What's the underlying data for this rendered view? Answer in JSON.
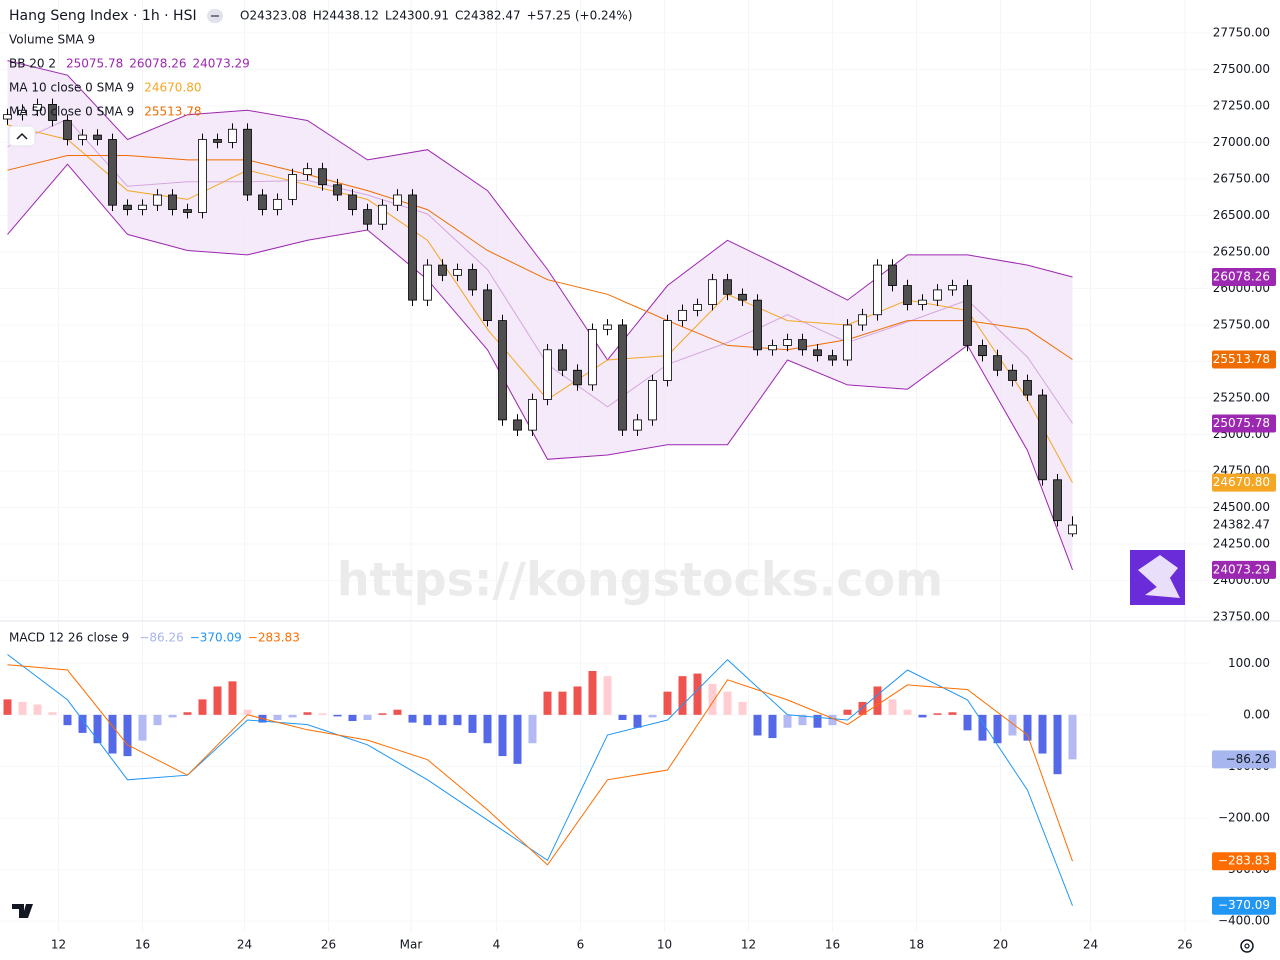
{
  "header": {
    "title": "Hang Seng Index · 1h · HSI",
    "ohlc": [
      {
        "label": "O",
        "value": "24323.08"
      },
      {
        "label": "H",
        "value": "24438.12"
      },
      {
        "label": "L",
        "value": "24300.91"
      },
      {
        "label": "C",
        "value": "24382.47"
      }
    ],
    "change": "+57.25 (+0.24%)"
  },
  "watermark": "https://kongstocks.com",
  "chart_data": [
    {
      "type": "candlestick",
      "xlim": [
        0,
        81
      ],
      "xticks": [
        {
          "value": 3.9,
          "label": "12"
        },
        {
          "value": 9.5,
          "label": "16"
        },
        {
          "value": 16.3,
          "label": "24"
        },
        {
          "value": 21.9,
          "label": "26"
        },
        {
          "value": 27.4,
          "label": "Mar"
        },
        {
          "value": 33.1,
          "label": "4"
        },
        {
          "value": 38.7,
          "label": "6"
        },
        {
          "value": 44.3,
          "label": "10"
        },
        {
          "value": 49.9,
          "label": "12"
        },
        {
          "value": 55.5,
          "label": "16"
        },
        {
          "value": 61.1,
          "label": "18"
        },
        {
          "value": 66.7,
          "label": "20"
        },
        {
          "value": 72.7,
          "label": "24"
        },
        {
          "value": 79,
          "label": "26"
        }
      ],
      "ylim": [
        23730,
        27975
      ],
      "yticks": [
        {
          "value": 27750,
          "label": "27750.00"
        },
        {
          "value": 27500,
          "label": "27500.00"
        },
        {
          "value": 27250,
          "label": "27250.00"
        },
        {
          "value": 27000,
          "label": "27000.00"
        },
        {
          "value": 26750,
          "label": "26750.00"
        },
        {
          "value": 26500,
          "label": "26500.00"
        },
        {
          "value": 26250,
          "label": "26250.00"
        },
        {
          "value": 26000,
          "label": "26000.00"
        },
        {
          "value": 25750,
          "label": "25750.00"
        },
        {
          "value": 25500,
          "label": "25500.00"
        },
        {
          "value": 25250,
          "label": "25250.00"
        },
        {
          "value": 25000,
          "label": "25000.00"
        },
        {
          "value": 24750,
          "label": "24750.00"
        },
        {
          "value": 24500,
          "label": "24500.00"
        },
        {
          "value": 24250,
          "label": "24250.00"
        },
        {
          "value": 24000,
          "label": "24000.00"
        },
        {
          "value": 23750,
          "label": "23750.00"
        }
      ],
      "x": [
        0.5,
        1.5,
        2.5,
        3.5,
        4.5,
        5.5,
        6.5,
        7.5,
        8.5,
        9.5,
        10.5,
        11.5,
        12.5,
        13.5,
        14.5,
        15.5,
        16.5,
        17.5,
        18.5,
        19.5,
        20.5,
        21.5,
        22.5,
        23.5,
        24.5,
        25.5,
        26.5,
        27.5,
        28.5,
        29.5,
        30.5,
        31.5,
        32.5,
        33.5,
        34.5,
        35.5,
        36.5,
        37.5,
        38.5,
        39.5,
        40.5,
        41.5,
        42.5,
        43.5,
        44.5,
        45.5,
        46.5,
        47.5,
        48.5,
        49.5,
        50.5,
        51.5,
        52.5,
        53.5,
        54.5,
        55.5,
        56.5,
        57.5,
        58.5,
        59.5,
        60.5,
        61.5,
        62.5,
        63.5,
        64.5,
        65.5,
        66.5,
        67.5,
        68.5,
        69.5,
        70.5,
        71.5
      ],
      "open": [
        27160,
        27190,
        27220,
        27260,
        27150,
        27020,
        27050,
        27020,
        26570,
        26540,
        26570,
        26640,
        26540,
        26520,
        27020,
        27000,
        27090,
        26640,
        26540,
        26610,
        26780,
        26820,
        26710,
        26640,
        26540,
        26440,
        26570,
        26640,
        25920,
        26160,
        26090,
        26130,
        25990,
        25780,
        25100,
        25030,
        25240,
        25580,
        25440,
        25340,
        25720,
        25750,
        25030,
        25100,
        25370,
        25780,
        25850,
        25890,
        26060,
        25960,
        25920,
        25580,
        25610,
        25650,
        25580,
        25540,
        25510,
        25750,
        25820,
        26160,
        26020,
        25890,
        25920,
        25990,
        26020,
        25610,
        25540,
        25440,
        25370,
        25270,
        24690,
        24320
      ],
      "high": [
        27230,
        27260,
        27300,
        27300,
        27190,
        27090,
        27090,
        27060,
        26610,
        26610,
        26680,
        26680,
        26580,
        27060,
        27060,
        27130,
        27130,
        26680,
        26650,
        26820,
        26860,
        26860,
        26750,
        26680,
        26580,
        26610,
        26680,
        26680,
        26200,
        26200,
        26170,
        26170,
        26030,
        25820,
        25140,
        25280,
        25620,
        25620,
        25480,
        25760,
        25790,
        25790,
        25140,
        25410,
        25820,
        25890,
        25930,
        26100,
        26100,
        26000,
        25960,
        25650,
        25690,
        25690,
        25620,
        25580,
        25790,
        25860,
        26200,
        26200,
        26060,
        25960,
        26030,
        26060,
        26060,
        25650,
        25580,
        25480,
        25410,
        25310,
        24730,
        24440
      ],
      "low": [
        27120,
        27150,
        27180,
        27110,
        26980,
        26980,
        26980,
        26530,
        26500,
        26500,
        26530,
        26500,
        26480,
        26480,
        26960,
        26960,
        26600,
        26500,
        26500,
        26570,
        26740,
        26670,
        26600,
        26500,
        26400,
        26400,
        26530,
        25880,
        25880,
        26050,
        26050,
        25950,
        25740,
        25060,
        24990,
        24990,
        25200,
        25400,
        25300,
        25300,
        25680,
        24990,
        24990,
        25060,
        25330,
        25740,
        25810,
        25850,
        25920,
        25880,
        25540,
        25540,
        25570,
        25540,
        25500,
        25470,
        25470,
        25710,
        25780,
        25980,
        25850,
        25850,
        25880,
        25950,
        25570,
        25500,
        25400,
        25330,
        25230,
        24650,
        24370,
        24300
      ],
      "close": [
        27190,
        27220,
        27260,
        27150,
        27020,
        27050,
        27020,
        26570,
        26540,
        26570,
        26640,
        26540,
        26520,
        27020,
        27000,
        27090,
        26640,
        26540,
        26610,
        26780,
        26820,
        26710,
        26640,
        26540,
        26440,
        26570,
        26640,
        25920,
        26160,
        26090,
        26130,
        25990,
        25780,
        25100,
        25030,
        25240,
        25580,
        25440,
        25340,
        25720,
        25750,
        25030,
        25100,
        25370,
        25780,
        25850,
        25890,
        26060,
        25960,
        25920,
        25580,
        25610,
        25650,
        25580,
        25540,
        25510,
        25750,
        25820,
        26160,
        26020,
        25890,
        25920,
        25990,
        26020,
        25610,
        25540,
        25440,
        25370,
        25270,
        24690,
        24410,
        24380
      ],
      "up_color": "#ffffff",
      "down_color": "#505050",
      "indicators": [
        "Volume SMA 9"
      ],
      "lines_x": [
        0.5,
        4.5,
        8.5,
        12.5,
        16.5,
        20.5,
        24.5,
        28.5,
        32.5,
        36.5,
        40.5,
        44.5,
        48.5,
        52.5,
        56.5,
        60.5,
        64.5,
        68.5,
        71.5
      ],
      "overlays": [
        {
          "label": "BB 20 2",
          "color": "#9c27b0",
          "fill": "#f3e5f8",
          "lines": [
            {
              "values": [
                26970,
                27160,
                26700,
                26730,
                26730,
                26740,
                26640,
                26510,
                26130,
                25480,
                25190,
                25480,
                25630,
                25820,
                25630,
                25770,
                25920,
                25530,
                25075.78
              ],
              "last_label": "25075.78"
            },
            {
              "values": [
                27560,
                27460,
                27020,
                27190,
                27220,
                27150,
                26880,
                26950,
                26670,
                26130,
                25510,
                26020,
                26330,
                26130,
                25920,
                26230,
                26230,
                26160,
                26078.26
              ],
              "last_label": "26078.26"
            },
            {
              "values": [
                26370,
                26850,
                26370,
                26260,
                26230,
                26330,
                26400,
                26060,
                25580,
                24830,
                24860,
                24930,
                24930,
                25510,
                25340,
                25310,
                25610,
                24890,
                24073.29
              ],
              "last_label": "24073.29"
            }
          ]
        },
        {
          "label": "MA 10 close 0 SMA 9",
          "color": "#f5a623",
          "lines": [
            {
              "values": [
                27120,
                27020,
                26670,
                26610,
                26810,
                26710,
                26610,
                26330,
                25720,
                25240,
                25510,
                25540,
                25960,
                25780,
                25750,
                25920,
                25850,
                25240,
                24670.8
              ],
              "last_label": "24670.80"
            }
          ]
        },
        {
          "label": "MA 50 close 0 SMA 9",
          "color": "#ef6c00",
          "lines": [
            {
              "values": [
                26810,
                26910,
                26910,
                26880,
                26880,
                26780,
                26670,
                26540,
                26260,
                26060,
                25960,
                25780,
                25610,
                25580,
                25650,
                25780,
                25780,
                25720,
                25513.78
              ],
              "last_label": "25513.78"
            }
          ]
        }
      ]
    },
    {
      "type": "macd",
      "label": "MACD 12 26 close 9",
      "ylim": [
        -421,
        180
      ],
      "yticks": [
        {
          "value": 100,
          "label": "100.00"
        },
        {
          "value": 0,
          "label": "0.00"
        },
        {
          "value": -100,
          "label": "−100.00"
        },
        {
          "value": -200,
          "label": "−200.00"
        },
        {
          "value": -300,
          "label": "−300.00"
        },
        {
          "value": -400,
          "label": "−400.00"
        }
      ],
      "histogram": {
        "values": [
          30,
          25,
          20,
          5,
          -20,
          -35,
          -55,
          -75,
          -80,
          -50,
          -20,
          -5,
          5,
          30,
          55,
          65,
          10,
          -15,
          -10,
          -5,
          5,
          3,
          -3,
          -12,
          -10,
          3,
          10,
          -15,
          -20,
          -20,
          -20,
          -35,
          -55,
          -80,
          -95,
          -55,
          45,
          45,
          55,
          85,
          75,
          -10,
          -25,
          -5,
          45,
          75,
          80,
          60,
          45,
          25,
          -40,
          -45,
          -25,
          -20,
          -25,
          -20,
          10,
          25,
          55,
          30,
          10,
          -5,
          3,
          5,
          -30,
          -50,
          -55,
          -40,
          -50,
          -75,
          -115,
          -86.26
        ],
        "last_label": "−86.26",
        "color": "#a7b6ee",
        "up_rising": "#ef5350",
        "up_falling": "#ffcdd2",
        "down_falling": "#5468e8",
        "down_rising": "#b2b9f3"
      },
      "lines_x": [
        0.5,
        4.5,
        8.5,
        12.5,
        16.5,
        20.5,
        24.5,
        28.5,
        32.5,
        36.5,
        40.5,
        44.5,
        48.5,
        52.5,
        56.5,
        60.5,
        64.5,
        68.5,
        71.5
      ],
      "lines": [
        {
          "color": "#2196f3",
          "values": [
            117,
            29,
            -126,
            -117,
            -10,
            -19,
            -58,
            -126,
            -204,
            -282,
            -39,
            -10,
            107,
            0,
            -10,
            87,
            29,
            -146,
            -370.09
          ],
          "last_label": "−370.09"
        },
        {
          "color": "#ff6d00",
          "values": [
            97,
            87,
            -58,
            -117,
            0,
            -29,
            -49,
            -87,
            -184,
            -291,
            -126,
            -107,
            68,
            29,
            -19,
            58,
            49,
            -39,
            -283.83
          ],
          "last_label": "−283.83"
        }
      ]
    }
  ]
}
